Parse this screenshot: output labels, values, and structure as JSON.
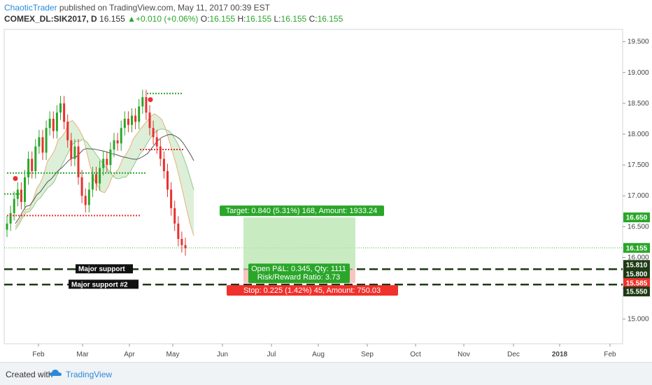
{
  "header": {
    "author": "ChaoticTrader",
    "published": " published on TradingView.com, May 11, 2017 00:39 EST",
    "symbol": "COMEX_DL:SIK2017, D",
    "price": "16.155",
    "change": "+0.010 (+0.06%)",
    "o_label": "O:",
    "o": "16.155",
    "h_label": "H:",
    "h": "16.155",
    "l_label": "L:",
    "l": "16.155",
    "c_label": "C:",
    "c": "16.155"
  },
  "footer": {
    "created": "Created with",
    "brand": "TradingView"
  },
  "colors": {
    "up": "#2aa62a",
    "down": "#e8312f",
    "target": "#2aa62a",
    "stop": "#f0312c",
    "support": "#1e3a14"
  },
  "chart_data": {
    "type": "candlestick",
    "y_axis": {
      "min": 14.6,
      "max": 19.7,
      "ticks": [
        "19.500",
        "19.000",
        "18.500",
        "18.000",
        "17.500",
        "17.000",
        "16.500",
        "16.000",
        "15.500",
        "15.000"
      ]
    },
    "x_axis": {
      "labels": [
        "Feb",
        "Mar",
        "Apr",
        "May",
        "Jun",
        "Jul",
        "Aug",
        "Sep",
        "Oct",
        "Nov",
        "Dec",
        "2018",
        "Feb"
      ]
    },
    "price_tags": [
      {
        "value": 16.65,
        "label": "16.650",
        "color": "#2aa62a"
      },
      {
        "value": 16.155,
        "label": "16.155",
        "color": "#2aa62a"
      },
      {
        "value": 15.81,
        "label": "15.810",
        "color": "#1e3a14"
      },
      {
        "value": 15.8,
        "label": "15.800",
        "color": "#1e3a14"
      },
      {
        "value": 15.585,
        "label": "15.585",
        "color": "#f0312c"
      },
      {
        "value": 15.55,
        "label": "15.550",
        "color": "#1e3a14"
      }
    ],
    "levels": [
      {
        "name": "Major support",
        "value": 15.81
      },
      {
        "name": "Major support #2",
        "value": 15.56
      }
    ],
    "position": {
      "target_label": "Target: 0.840 (5.31%) 168, Amount: 1933.24",
      "stop_label": "Stop: 0.225 (1.42%) 45, Amount: 750.03",
      "pnl_label": "Open P&L: 0.345, Qty: 1111",
      "rr_label": "Risk/Reward Ratio: 3.73",
      "entry": 15.81,
      "target": 16.65,
      "stop": 15.585
    },
    "prices": [
      16.55,
      16.72,
      16.95,
      17.1,
      16.9,
      17.3,
      17.6,
      17.4,
      17.8,
      17.95,
      17.7,
      18.1,
      18.25,
      18.05,
      18.35,
      18.5,
      18.2,
      17.9,
      17.6,
      17.8,
      17.3,
      17.0,
      16.85,
      17.1,
      17.35,
      17.2,
      17.45,
      17.6,
      17.5,
      17.75,
      17.9,
      17.85,
      18.1,
      18.25,
      18.15,
      18.3,
      18.2,
      18.45,
      18.6,
      18.35,
      18.1,
      17.95,
      17.8,
      17.6,
      17.4,
      17.1,
      16.8,
      16.55,
      16.3,
      16.2,
      16.15
    ]
  }
}
